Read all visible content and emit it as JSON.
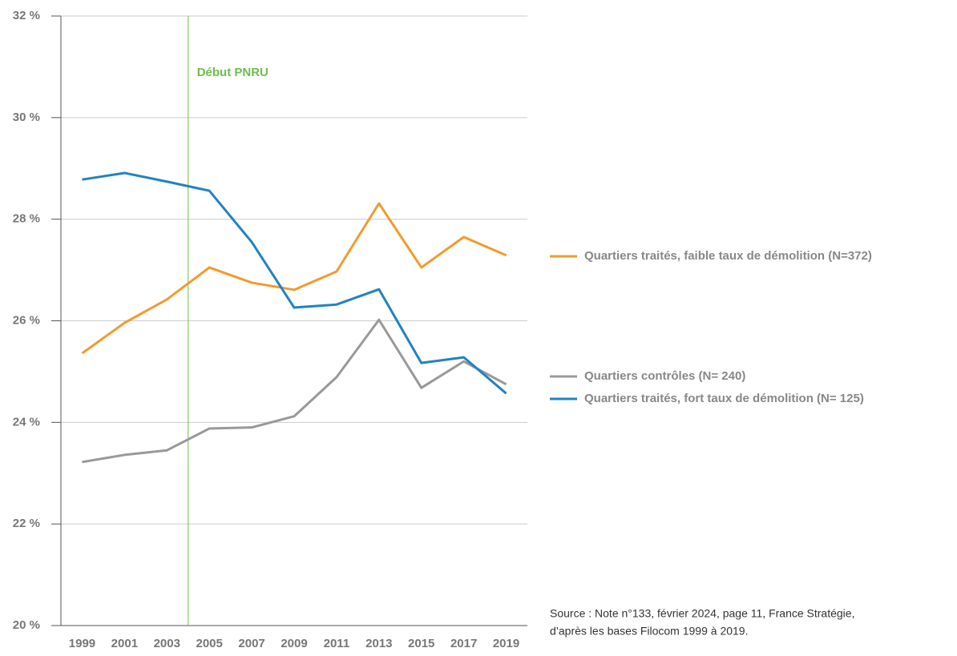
{
  "chart_data": {
    "type": "line",
    "x": [
      1999,
      2001,
      2003,
      2005,
      2007,
      2009,
      2011,
      2013,
      2015,
      2017,
      2019
    ],
    "xlim": [
      1998,
      2020
    ],
    "xticks": [
      1999,
      2001,
      2003,
      2005,
      2007,
      2009,
      2011,
      2013,
      2015,
      2017,
      2019
    ],
    "ylim": [
      20,
      32
    ],
    "yticks": [
      {
        "value": 20,
        "label": "20 %"
      },
      {
        "value": 22,
        "label": "22 %"
      },
      {
        "value": 24,
        "label": "24 %"
      },
      {
        "value": 26,
        "label": "26 %"
      },
      {
        "value": 28,
        "label": "28 %"
      },
      {
        "value": 30,
        "label": "30 %"
      },
      {
        "value": 32,
        "label": "32 %"
      }
    ],
    "grid": true,
    "series": [
      {
        "name": "Quartiers traités, faible taux de démolition (N=372)",
        "color": "#f39a2e",
        "values": [
          25.36,
          25.96,
          26.42,
          27.05,
          26.75,
          26.61,
          26.97,
          28.31,
          27.05,
          27.65,
          27.29
        ]
      },
      {
        "name": "Quartiers contrôles  (N= 240)",
        "color": "#999999",
        "values": [
          23.22,
          23.36,
          23.45,
          23.88,
          23.9,
          24.12,
          24.89,
          26.02,
          24.68,
          25.2,
          24.75
        ]
      },
      {
        "name": "Quartiers traités, fort taux de démolition  (N= 125)",
        "color": "#2282c3",
        "values": [
          28.78,
          28.91,
          28.74,
          28.56,
          27.55,
          26.26,
          26.32,
          26.62,
          25.17,
          25.28,
          24.57
        ]
      }
    ],
    "annotations": [
      {
        "x": 2004,
        "text": "Début PNRU",
        "color": "#6cbf4a"
      }
    ],
    "source": [
      "Source : Note n°133, février 2024, page 11, France Stratégie,",
      "d’après les bases Filocom 1999 à 2019."
    ]
  }
}
